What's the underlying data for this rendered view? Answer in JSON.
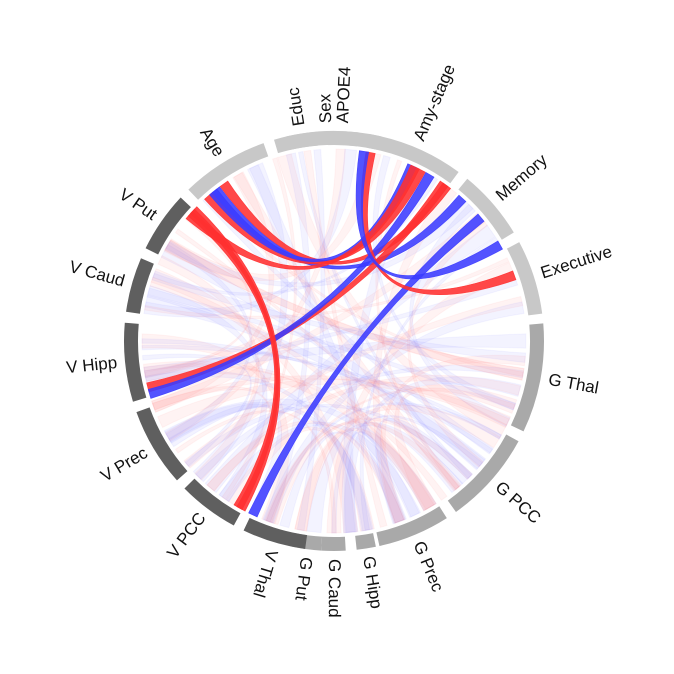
{
  "diagram": {
    "type": "chord",
    "segments": [
      {
        "id": "educ",
        "label": "Educ",
        "start": 346.8,
        "end": 355.3,
        "color": "#c8c8c8"
      },
      {
        "id": "apoe4",
        "label": "APOE4",
        "start": 358.3,
        "end": 366.7,
        "color": "#c8c8c8"
      },
      {
        "id": "amy-stage",
        "label": "Amy-stage",
        "start": 369.7,
        "end": 396.4,
        "color": "#c8c8c8"
      },
      {
        "id": "memory",
        "label": "Memory",
        "start": 399.4,
        "end": 418.9,
        "color": "#c8c8c8"
      },
      {
        "id": "executive",
        "label": "Executive",
        "start": 421.9,
        "end": 442.5,
        "color": "#c8c8c8"
      },
      {
        "id": "g-thal",
        "label": "G Thal",
        "start": 85.2,
        "end": 115.5,
        "color": "#a9a9a9"
      },
      {
        "id": "g-pcc",
        "label": "G PCC",
        "start": 118.5,
        "end": 144.5,
        "color": "#a9a9a9"
      },
      {
        "id": "g-prec",
        "label": "G Prec",
        "start": 147.5,
        "end": 167.5,
        "color": "#a9a9a9"
      },
      {
        "id": "g-hipp",
        "label": "G Hipp",
        "start": 168.5,
        "end": 173.8,
        "color": "#a9a9a9"
      },
      {
        "id": "g-caud",
        "label": "G Caud",
        "start": 176.8,
        "end": 183.5,
        "color": "#a9a9a9"
      },
      {
        "id": "g-put",
        "label": "G Put",
        "start": 183.5,
        "end": 191.5,
        "color": "#a9a9a9"
      },
      {
        "id": "v-thal",
        "label": "V Thal",
        "start": 187.9,
        "end": 205.5,
        "color": "#5f5f5f"
      },
      {
        "id": "v-pcc",
        "label": "V PCC",
        "start": 208.5,
        "end": 225.4,
        "color": "#5f5f5f"
      },
      {
        "id": "v-prec",
        "label": "V Prec",
        "start": 228.4,
        "end": 250.2,
        "color": "#5f5f5f"
      },
      {
        "id": "v-hipp",
        "label": "V Hipp",
        "start": 253.2,
        "end": 275.0,
        "color": "#5f5f5f"
      },
      {
        "id": "v-caud",
        "label": "V Caud",
        "start": 278.0,
        "end": 293.2,
        "color": "#5f5f5f"
      },
      {
        "id": "v-put",
        "label": "V Put",
        "start": 296.2,
        "end": 313.1,
        "color": "#5f5f5f"
      },
      {
        "id": "age",
        "label": "Age",
        "start": 316.1,
        "end": 340.4,
        "color": "#c8c8c8"
      },
      {
        "id": "sex",
        "label": "Sex",
        "start": 343.4,
        "end": 372.8,
        "color": "#c8c8c8"
      }
    ],
    "strong_links": [
      {
        "from": 325.0,
        "to": 396.0,
        "color": "#ff3030"
      },
      {
        "from": 322.0,
        "to": 402.0,
        "color": "#3b3bff"
      },
      {
        "from": 319.0,
        "to": 387.0,
        "color": "#ff3030"
      },
      {
        "from": 321.0,
        "to": 384.0,
        "color": "#3b3bff"
      },
      {
        "from": 311.0,
        "to": 385.0,
        "color": "#ff3030"
      },
      {
        "from": 256.0,
        "to": 395.0,
        "color": "#ff3030"
      },
      {
        "from": 254.0,
        "to": 390.0,
        "color": "#3b3bff"
      },
      {
        "from": 205.0,
        "to": 410.0,
        "color": "#3b3bff"
      },
      {
        "from": 209.0,
        "to": 313.0,
        "color": "#ff3030"
      },
      {
        "from": 210.0,
        "to": 312.0,
        "color": "#ff3030"
      },
      {
        "from": 371.0,
        "to": 430.0,
        "color": "#ff3030"
      },
      {
        "from": 369.0,
        "to": 420.0,
        "color": "#3b3bff"
      }
    ]
  }
}
